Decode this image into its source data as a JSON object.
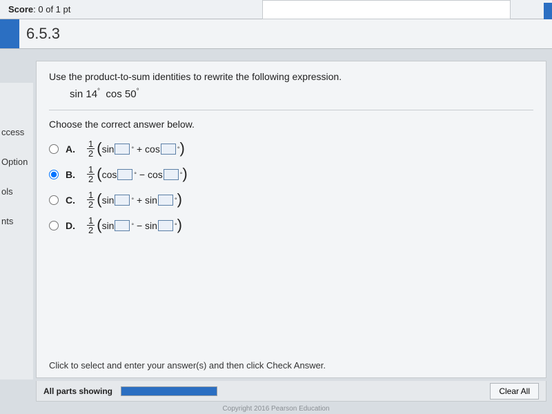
{
  "header": {
    "score_label": "Score",
    "score_value": "0 of 1 pt"
  },
  "section": {
    "number": "6.5.3"
  },
  "sidebar": {
    "items": [
      "ccess",
      "Option",
      "ols",
      "nts"
    ]
  },
  "question": {
    "prompt": "Use the product-to-sum identities to rewrite the following expression.",
    "expression_parts": {
      "fn1": "sin",
      "arg1": "14",
      "fn2": "cos",
      "arg2": "50"
    },
    "choose_label": "Choose the correct answer below.",
    "selected_index": 1,
    "options": [
      {
        "letter": "A.",
        "fn1": "sin",
        "op": "+",
        "fn2": "cos"
      },
      {
        "letter": "B.",
        "fn1": "cos",
        "op": "−",
        "fn2": "cos"
      },
      {
        "letter": "C.",
        "fn1": "sin",
        "op": "+",
        "fn2": "sin"
      },
      {
        "letter": "D.",
        "fn1": "sin",
        "op": "−",
        "fn2": "sin"
      }
    ],
    "hint": "Click to select and enter your answer(s) and then click Check Answer."
  },
  "footer": {
    "parts_label": "All parts showing",
    "progress_pct": 100,
    "clear_label": "Clear All",
    "copyright": "Copyright 2016 Pearson Education"
  },
  "colors": {
    "accent": "#2b6fc2",
    "box_border": "#5b7fa6",
    "box_fill": "#eaf0f8"
  }
}
